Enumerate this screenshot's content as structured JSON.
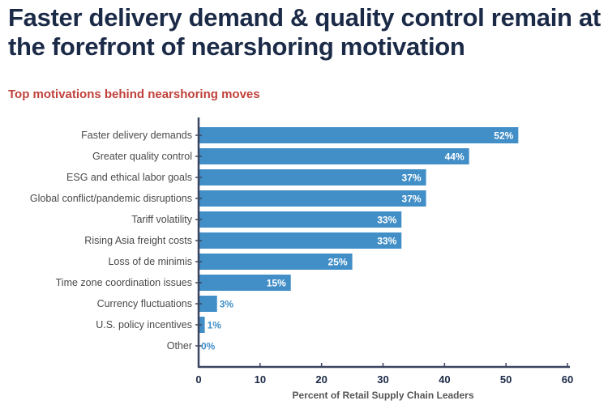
{
  "title": "Faster delivery demand & quality control remain at the forefront of nearshoring motivation",
  "subtitle": "Top motivations behind nearshoring moves",
  "colors": {
    "bar": "#428fc8",
    "title": "#1b2a47",
    "subtitle": "#c0413b",
    "axis": "#3a4560"
  },
  "chart_data": {
    "type": "bar",
    "orientation": "horizontal",
    "categories": [
      "Faster delivery demands",
      "Greater quality control",
      "ESG and ethical labor goals",
      "Global conflict/pandemic disruptions",
      "Tariff volatility",
      "Rising Asia freight costs",
      "Loss of de minimis",
      "Time zone coordination issues",
      "Currency fluctuations",
      "U.S. policy incentives",
      "Other"
    ],
    "values": [
      52,
      44,
      37,
      37,
      33,
      33,
      25,
      15,
      3,
      1,
      0
    ],
    "data_labels": [
      "52%",
      "44%",
      "37%",
      "37%",
      "33%",
      "33%",
      "25%",
      "15%",
      "3%",
      "1%",
      "0%"
    ],
    "xlabel": "Percent of Retail Supply Chain Leaders",
    "ylabel": "",
    "xlim": [
      0,
      60
    ],
    "xticks": [
      0,
      10,
      20,
      30,
      40,
      50,
      60
    ],
    "grid": false
  }
}
